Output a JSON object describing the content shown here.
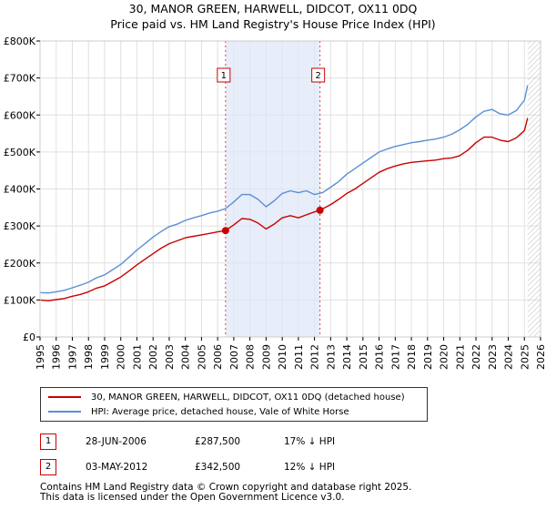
{
  "chart_data": {
    "type": "line",
    "title": "30, MANOR GREEN, HARWELL, DIDCOT, OX11 0DQ",
    "subtitle": "Price paid vs. HM Land Registry's House Price Index (HPI)",
    "xlim": [
      1995,
      2026
    ],
    "ylim": [
      0,
      800000
    ],
    "y_ticks": [
      {
        "value": 0,
        "label": "£0"
      },
      {
        "value": 100000,
        "label": "£100K"
      },
      {
        "value": 200000,
        "label": "£200K"
      },
      {
        "value": 300000,
        "label": "£300K"
      },
      {
        "value": 400000,
        "label": "£400K"
      },
      {
        "value": 500000,
        "label": "£500K"
      },
      {
        "value": 600000,
        "label": "£600K"
      },
      {
        "value": 700000,
        "label": "£700K"
      },
      {
        "value": 800000,
        "label": "£800K"
      }
    ],
    "x_ticks": [
      "1995",
      "1996",
      "1997",
      "1998",
      "1999",
      "2000",
      "2001",
      "2002",
      "2003",
      "2004",
      "2005",
      "2006",
      "2007",
      "2008",
      "2009",
      "2010",
      "2011",
      "2012",
      "2013",
      "2014",
      "2015",
      "2016",
      "2017",
      "2018",
      "2019",
      "2020",
      "2021",
      "2022",
      "2023",
      "2024",
      "2025",
      "2026"
    ],
    "shaded_span": [
      2006.49,
      2012.34
    ],
    "hatched_after": 2025.2,
    "series": [
      {
        "name": "30, MANOR GREEN, HARWELL, DIDCOT, OX11 0DQ (detached house)",
        "color": "#cc0000",
        "x": [
          1995.0,
          1995.5,
          1996.0,
          1996.5,
          1997.0,
          1997.5,
          1998.0,
          1998.5,
          1999.0,
          1999.5,
          2000.0,
          2000.5,
          2001.0,
          2001.5,
          2002.0,
          2002.5,
          2003.0,
          2003.5,
          2004.0,
          2004.5,
          2005.0,
          2005.5,
          2006.0,
          2006.49,
          2007.0,
          2007.5,
          2008.0,
          2008.5,
          2009.0,
          2009.5,
          2010.0,
          2010.5,
          2011.0,
          2011.5,
          2012.0,
          2012.34,
          2013.0,
          2013.5,
          2014.0,
          2014.5,
          2015.0,
          2015.5,
          2016.0,
          2016.5,
          2017.0,
          2017.5,
          2018.0,
          2018.5,
          2019.0,
          2019.5,
          2020.0,
          2020.5,
          2021.0,
          2021.5,
          2022.0,
          2022.5,
          2023.0,
          2023.5,
          2024.0,
          2024.5,
          2025.0,
          2025.2
        ],
        "values": [
          100000,
          98000,
          101000,
          104000,
          110000,
          115000,
          122000,
          132000,
          138000,
          150000,
          162000,
          178000,
          195000,
          210000,
          225000,
          240000,
          252000,
          260000,
          268000,
          272000,
          276000,
          280000,
          284000,
          287500,
          303000,
          320000,
          318000,
          308000,
          292000,
          305000,
          322000,
          328000,
          322000,
          330000,
          338000,
          342500,
          358000,
          372000,
          388000,
          400000,
          415000,
          430000,
          445000,
          455000,
          462000,
          468000,
          472000,
          474000,
          476000,
          478000,
          482000,
          484000,
          490000,
          505000,
          525000,
          540000,
          540000,
          532000,
          528000,
          538000,
          558000,
          592000
        ]
      },
      {
        "name": "HPI: Average price, detached house, Vale of White Horse",
        "color": "#5b8fd4",
        "x": [
          1995.0,
          1995.5,
          1996.0,
          1996.5,
          1997.0,
          1997.5,
          1998.0,
          1998.5,
          1999.0,
          1999.5,
          2000.0,
          2000.5,
          2001.0,
          2001.5,
          2002.0,
          2002.5,
          2003.0,
          2003.5,
          2004.0,
          2004.5,
          2005.0,
          2005.5,
          2006.0,
          2006.5,
          2007.0,
          2007.5,
          2008.0,
          2008.5,
          2009.0,
          2009.5,
          2010.0,
          2010.5,
          2011.0,
          2011.5,
          2012.0,
          2012.5,
          2013.0,
          2013.5,
          2014.0,
          2014.5,
          2015.0,
          2015.5,
          2016.0,
          2016.5,
          2017.0,
          2017.5,
          2018.0,
          2018.5,
          2019.0,
          2019.5,
          2020.0,
          2020.5,
          2021.0,
          2021.5,
          2022.0,
          2022.5,
          2023.0,
          2023.5,
          2024.0,
          2024.5,
          2025.0,
          2025.2
        ],
        "values": [
          120000,
          119000,
          122000,
          126000,
          133000,
          140000,
          148000,
          160000,
          168000,
          182000,
          196000,
          215000,
          235000,
          252000,
          270000,
          285000,
          298000,
          305000,
          315000,
          322000,
          328000,
          335000,
          340000,
          347000,
          365000,
          385000,
          385000,
          372000,
          352000,
          368000,
          388000,
          395000,
          390000,
          395000,
          385000,
          390000,
          405000,
          420000,
          440000,
          455000,
          470000,
          485000,
          500000,
          508000,
          515000,
          520000,
          525000,
          528000,
          532000,
          535000,
          540000,
          548000,
          560000,
          575000,
          595000,
          610000,
          615000,
          603000,
          600000,
          612000,
          640000,
          680000
        ]
      }
    ],
    "annotations": [
      {
        "label": "1",
        "x": 2006.49,
        "value": 287500
      },
      {
        "label": "2",
        "x": 2012.34,
        "value": 342500
      }
    ]
  },
  "legend": {
    "items": [
      {
        "label": "30, MANOR GREEN, HARWELL, DIDCOT, OX11 0DQ (detached house)",
        "color": "#cc0000"
      },
      {
        "label": "HPI: Average price, detached house, Vale of White Horse",
        "color": "#5b8fd4"
      }
    ]
  },
  "sales": [
    {
      "num": "1",
      "date": "28-JUN-2006",
      "price": "£287,500",
      "diff": "17% ↓ HPI"
    },
    {
      "num": "2",
      "date": "03-MAY-2012",
      "price": "£342,500",
      "diff": "12% ↓ HPI"
    }
  ],
  "footer": {
    "line1": "Contains HM Land Registry data © Crown copyright and database right 2025.",
    "line2": "This data is licensed under the Open Government Licence v3.0."
  }
}
